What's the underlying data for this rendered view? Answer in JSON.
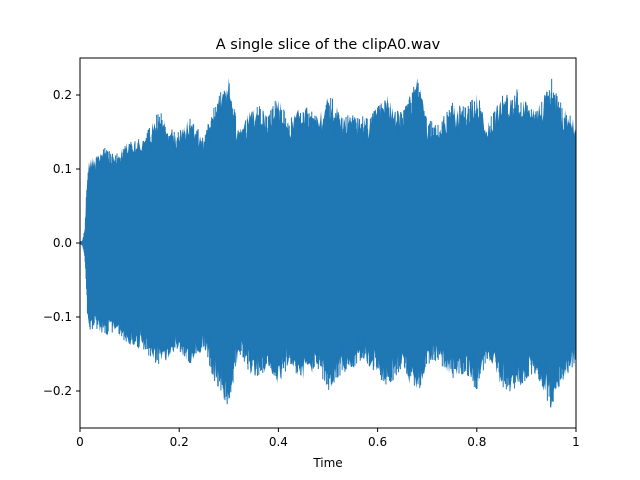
{
  "figure": {
    "background": "#ffffff"
  },
  "chart_data": {
    "type": "line",
    "title": "A single slice of the clipA0.wav",
    "xlabel": "Time",
    "ylabel": "",
    "xlim": [
      0,
      1
    ],
    "ylim": [
      -0.25,
      0.25
    ],
    "grid": false,
    "legend": "none",
    "x_ticks": [
      0,
      0.2,
      0.4,
      0.6,
      0.8,
      1
    ],
    "x_tick_labels": [
      "0",
      "0.2",
      "0.4",
      "0.6",
      "0.8",
      "1"
    ],
    "y_ticks": [
      -0.2,
      -0.1,
      0.0,
      0.1,
      0.2
    ],
    "y_tick_labels": [
      "−0.2",
      "−0.1",
      "0.0",
      "0.1",
      "0.2"
    ],
    "series": [
      {
        "color": "#1f77b4",
        "kind": "waveform",
        "envelope": {
          "x": [
            0,
            0.005,
            0.01,
            0.015,
            0.02,
            0.03,
            0.05,
            0.07,
            0.1,
            0.13,
            0.16,
            0.18,
            0.2,
            0.22,
            0.25,
            0.27,
            0.3,
            0.32,
            0.35,
            0.38,
            0.4,
            0.42,
            0.45,
            0.48,
            0.5,
            0.53,
            0.55,
            0.58,
            0.6,
            0.62,
            0.65,
            0.68,
            0.7,
            0.72,
            0.75,
            0.78,
            0.8,
            0.82,
            0.85,
            0.88,
            0.9,
            0.92,
            0.95,
            0.97,
            1.0
          ],
          "upper": [
            0.002,
            0.003,
            0.02,
            0.1,
            0.12,
            0.115,
            0.13,
            0.12,
            0.14,
            0.145,
            0.18,
            0.155,
            0.15,
            0.17,
            0.145,
            0.19,
            0.225,
            0.15,
            0.19,
            0.18,
            0.2,
            0.165,
            0.19,
            0.17,
            0.205,
            0.175,
            0.175,
            0.17,
            0.185,
            0.2,
            0.175,
            0.225,
            0.17,
            0.16,
            0.19,
            0.185,
            0.205,
            0.16,
            0.2,
            0.21,
            0.19,
            0.18,
            0.225,
            0.19,
            0.165
          ],
          "lower": [
            -0.002,
            -0.003,
            -0.02,
            -0.1,
            -0.12,
            -0.115,
            -0.13,
            -0.12,
            -0.14,
            -0.145,
            -0.17,
            -0.155,
            -0.15,
            -0.165,
            -0.145,
            -0.185,
            -0.225,
            -0.15,
            -0.185,
            -0.175,
            -0.195,
            -0.165,
            -0.19,
            -0.17,
            -0.2,
            -0.175,
            -0.17,
            -0.165,
            -0.18,
            -0.195,
            -0.17,
            -0.215,
            -0.165,
            -0.16,
            -0.185,
            -0.18,
            -0.2,
            -0.16,
            -0.195,
            -0.205,
            -0.185,
            -0.18,
            -0.225,
            -0.19,
            -0.165
          ]
        }
      }
    ]
  }
}
